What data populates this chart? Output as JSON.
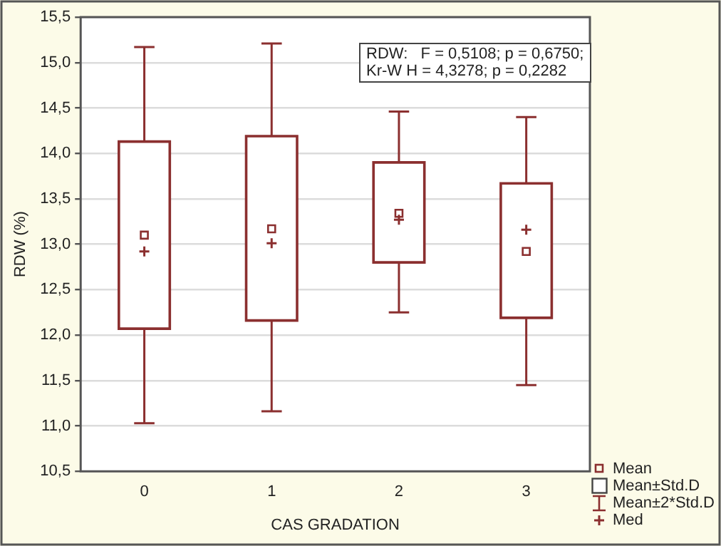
{
  "chart_data": {
    "type": "box",
    "xlabel": "CAS GRADATION",
    "ylabel": "RDW (%)",
    "categories": [
      "0",
      "1",
      "2",
      "3"
    ],
    "series": [
      {
        "type": "box",
        "color": "#ffffff",
        "boxes": [
          {
            "low": 11.03,
            "q1": 12.07,
            "median": 12.92,
            "q3": 14.13,
            "high": 15.17
          },
          {
            "low": 11.16,
            "q1": 12.16,
            "median": 13.01,
            "q3": 14.19,
            "high": 15.21
          },
          {
            "low": 12.25,
            "q1": 12.8,
            "median": 13.27,
            "q3": 13.9,
            "high": 14.46
          },
          {
            "low": 11.45,
            "q1": 12.19,
            "median": 13.16,
            "q3": 13.67,
            "high": 14.4
          }
        ]
      },
      {
        "type": "scatter",
        "color": "#8b2f2f",
        "marker": "square",
        "x": [
          "0",
          "1",
          "2",
          "3"
        ],
        "values": [
          13.1,
          13.17,
          13.34,
          12.92
        ]
      }
    ],
    "ylim": [
      10.5,
      15.5
    ],
    "yticks": [
      {
        "value": 10.5,
        "label": "10,5"
      },
      {
        "value": 11,
        "label": "11,0"
      },
      {
        "value": 11.5,
        "label": "11,5"
      },
      {
        "value": 12,
        "label": "12,0"
      },
      {
        "value": 12.5,
        "label": "12,5"
      },
      {
        "value": 13,
        "label": "13,0"
      },
      {
        "value": 13.5,
        "label": "13,5"
      },
      {
        "value": 14,
        "label": "14,0"
      },
      {
        "value": 14.5,
        "label": "14,5"
      },
      {
        "value": 15,
        "label": "15,0"
      },
      {
        "value": 15.5,
        "label": "15,5"
      }
    ],
    "grid": "y",
    "annotations": [
      "RDW:   F = 0,5108; p = 0,6750;",
      "Kr-W H = 4,3278; p = 0,2282",
      "Mean",
      "Mean±Std.D",
      "Mean±2*Std.D",
      "Med"
    ]
  }
}
